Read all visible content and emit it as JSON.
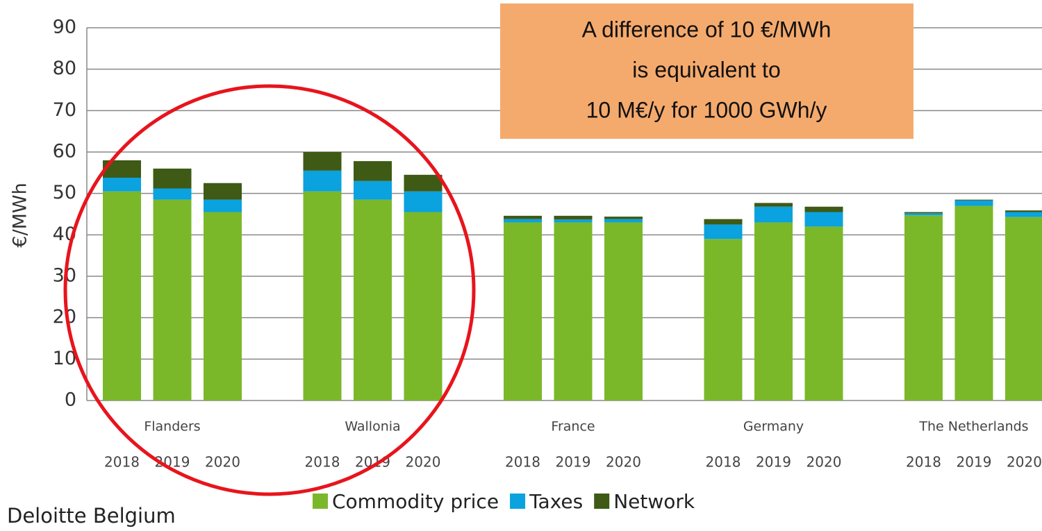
{
  "chart_data": {
    "type": "bar",
    "stacked": true,
    "ylabel": "€/MWh",
    "groups": [
      "Flanders",
      "Wallonia",
      "France",
      "Germany",
      "The Netherlands"
    ],
    "categories": [
      "2018",
      "2019",
      "2020",
      "2018",
      "2019",
      "2020",
      "2018",
      "2019",
      "2020",
      "2018",
      "2019",
      "2020",
      "2018",
      "2019",
      "2020"
    ],
    "series": [
      {
        "name": "Commodity price",
        "color": "#7ab82a",
        "values": [
          50.5,
          48.5,
          45.5,
          50.5,
          48.5,
          45.5,
          43,
          43,
          43,
          39,
          43,
          42,
          44.7,
          47,
          44.3
        ]
      },
      {
        "name": "Taxes",
        "color": "#0aa2df",
        "values": [
          3.3,
          2.7,
          3,
          5,
          4.5,
          5,
          0.8,
          0.7,
          0.8,
          3.5,
          3.8,
          3.5,
          0.5,
          1.3,
          1.2
        ]
      },
      {
        "name": "Network",
        "color": "#3e5a15",
        "values": [
          4.2,
          4.8,
          4,
          4.5,
          4.8,
          4,
          0.8,
          0.9,
          0.6,
          1.3,
          0.9,
          1.3,
          0.3,
          0.2,
          0.4
        ]
      }
    ],
    "ylim": [
      0,
      90
    ],
    "yticks": [
      0,
      10,
      20,
      30,
      40,
      50,
      60,
      70,
      80,
      90
    ],
    "grid": true,
    "legend": "bottom",
    "annotation": [
      "A difference of 10 €/MWh",
      "is equivalent to",
      "10 M€/y for 1000 GWh/y"
    ],
    "source": "Deloitte Belgium"
  }
}
